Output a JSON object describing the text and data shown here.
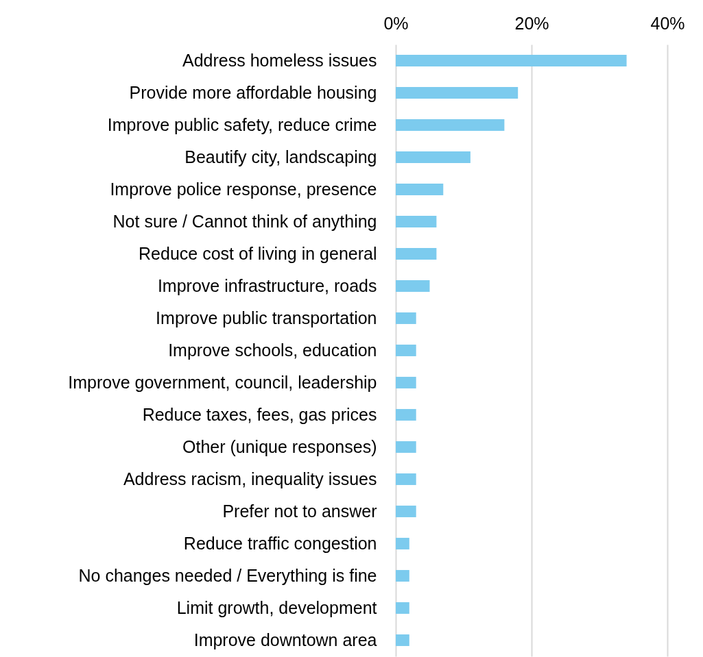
{
  "chart_data": {
    "type": "bar",
    "orientation": "horizontal",
    "categories": [
      "Address homeless issues",
      "Provide more affordable housing",
      "Improve public safety, reduce crime",
      "Beautify city, landscaping",
      "Improve police response, presence",
      "Not sure / Cannot think of anything",
      "Reduce cost of living in general",
      "Improve infrastructure, roads",
      "Improve public transportation",
      "Improve schools, education",
      "Improve government, council, leadership",
      "Reduce taxes, fees, gas prices",
      "Other (unique responses)",
      "Address racism, inequality issues",
      "Prefer not to answer",
      "Reduce traffic congestion",
      "No changes needed / Everything is fine",
      "Limit growth, development",
      "Improve downtown area"
    ],
    "values": [
      34,
      18,
      16,
      11,
      7,
      6,
      6,
      5,
      3,
      3,
      3,
      3,
      3,
      3,
      3,
      2,
      2,
      2,
      2
    ],
    "color": "#7ccbee",
    "xlim": [
      0,
      40
    ],
    "xticks": [
      {
        "value": 0,
        "label": "0%"
      },
      {
        "value": 20,
        "label": "20%"
      },
      {
        "value": 40,
        "label": "40%"
      }
    ],
    "grid": "x"
  }
}
